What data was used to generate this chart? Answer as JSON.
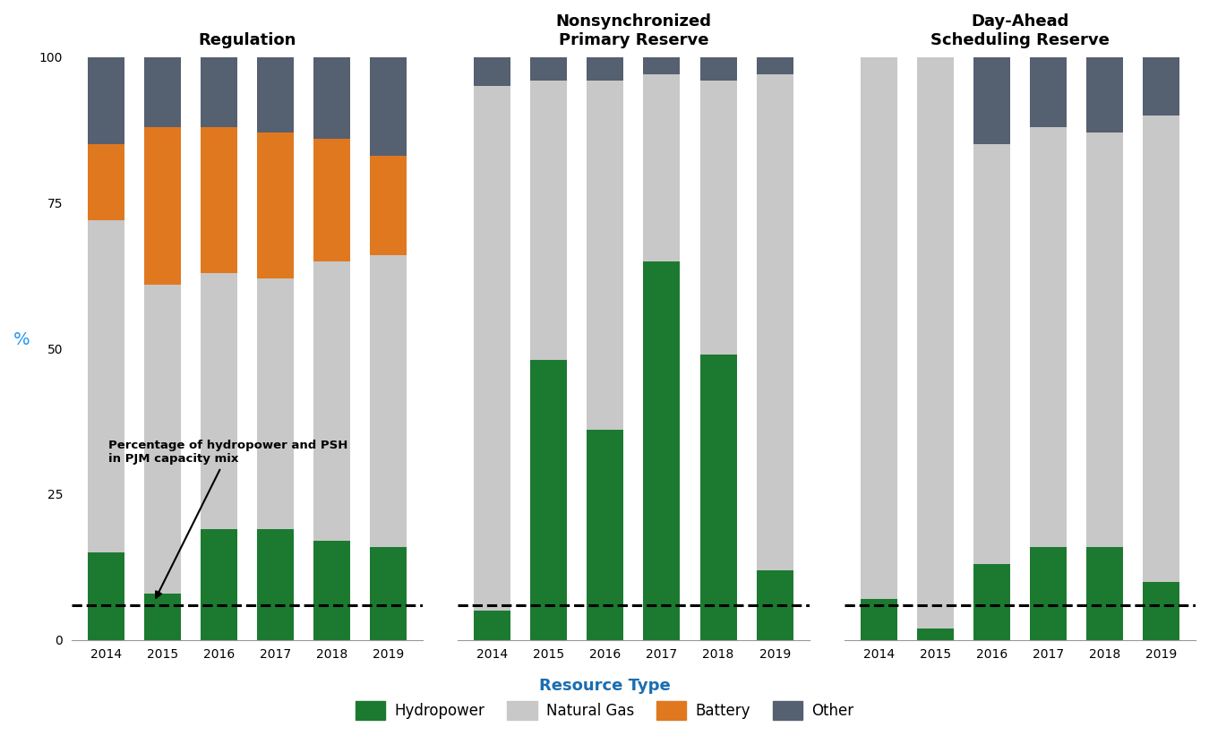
{
  "years": [
    "2014",
    "2015",
    "2016",
    "2017",
    "2018",
    "2019"
  ],
  "panels": {
    "regulation": {
      "title": "Regulation",
      "hydropower": [
        15,
        8,
        19,
        19,
        17,
        16
      ],
      "natural_gas": [
        57,
        53,
        44,
        43,
        48,
        50
      ],
      "battery": [
        13,
        27,
        25,
        25,
        21,
        17
      ],
      "other": [
        15,
        12,
        12,
        13,
        14,
        17
      ]
    },
    "nonsync": {
      "title": "Nonsynchronized\nPrimary Reserve",
      "hydropower": [
        5,
        48,
        36,
        65,
        49,
        12
      ],
      "natural_gas": [
        90,
        48,
        60,
        32,
        47,
        85
      ],
      "battery": [
        0,
        0,
        0,
        0,
        0,
        0
      ],
      "other": [
        5,
        4,
        4,
        3,
        4,
        3
      ]
    },
    "dayahead": {
      "title": "Day-Ahead\nScheduling Reserve",
      "hydropower": [
        7,
        2,
        13,
        16,
        16,
        10
      ],
      "natural_gas": [
        93,
        98,
        72,
        72,
        71,
        80
      ],
      "battery": [
        0,
        0,
        0,
        0,
        0,
        0
      ],
      "other": [
        0,
        0,
        15,
        12,
        13,
        10
      ]
    }
  },
  "dashed_line_value": 6,
  "colors": {
    "hydropower": "#1c7a30",
    "natural_gas": "#c8c8c8",
    "battery": "#e07820",
    "other": "#556070"
  },
  "annotation_text": "Percentage of hydropower and PSH\nin PJM capacity mix",
  "ylabel": "%",
  "ylim": [
    0,
    100
  ],
  "yticks": [
    0,
    25,
    50,
    75,
    100
  ],
  "legend_title": "Resource Type",
  "legend_labels": [
    "Hydropower",
    "Natural Gas",
    "Battery",
    "Other"
  ],
  "background_color": "#ffffff",
  "title_fontsize": 13,
  "tick_fontsize": 10,
  "bar_width": 0.65
}
